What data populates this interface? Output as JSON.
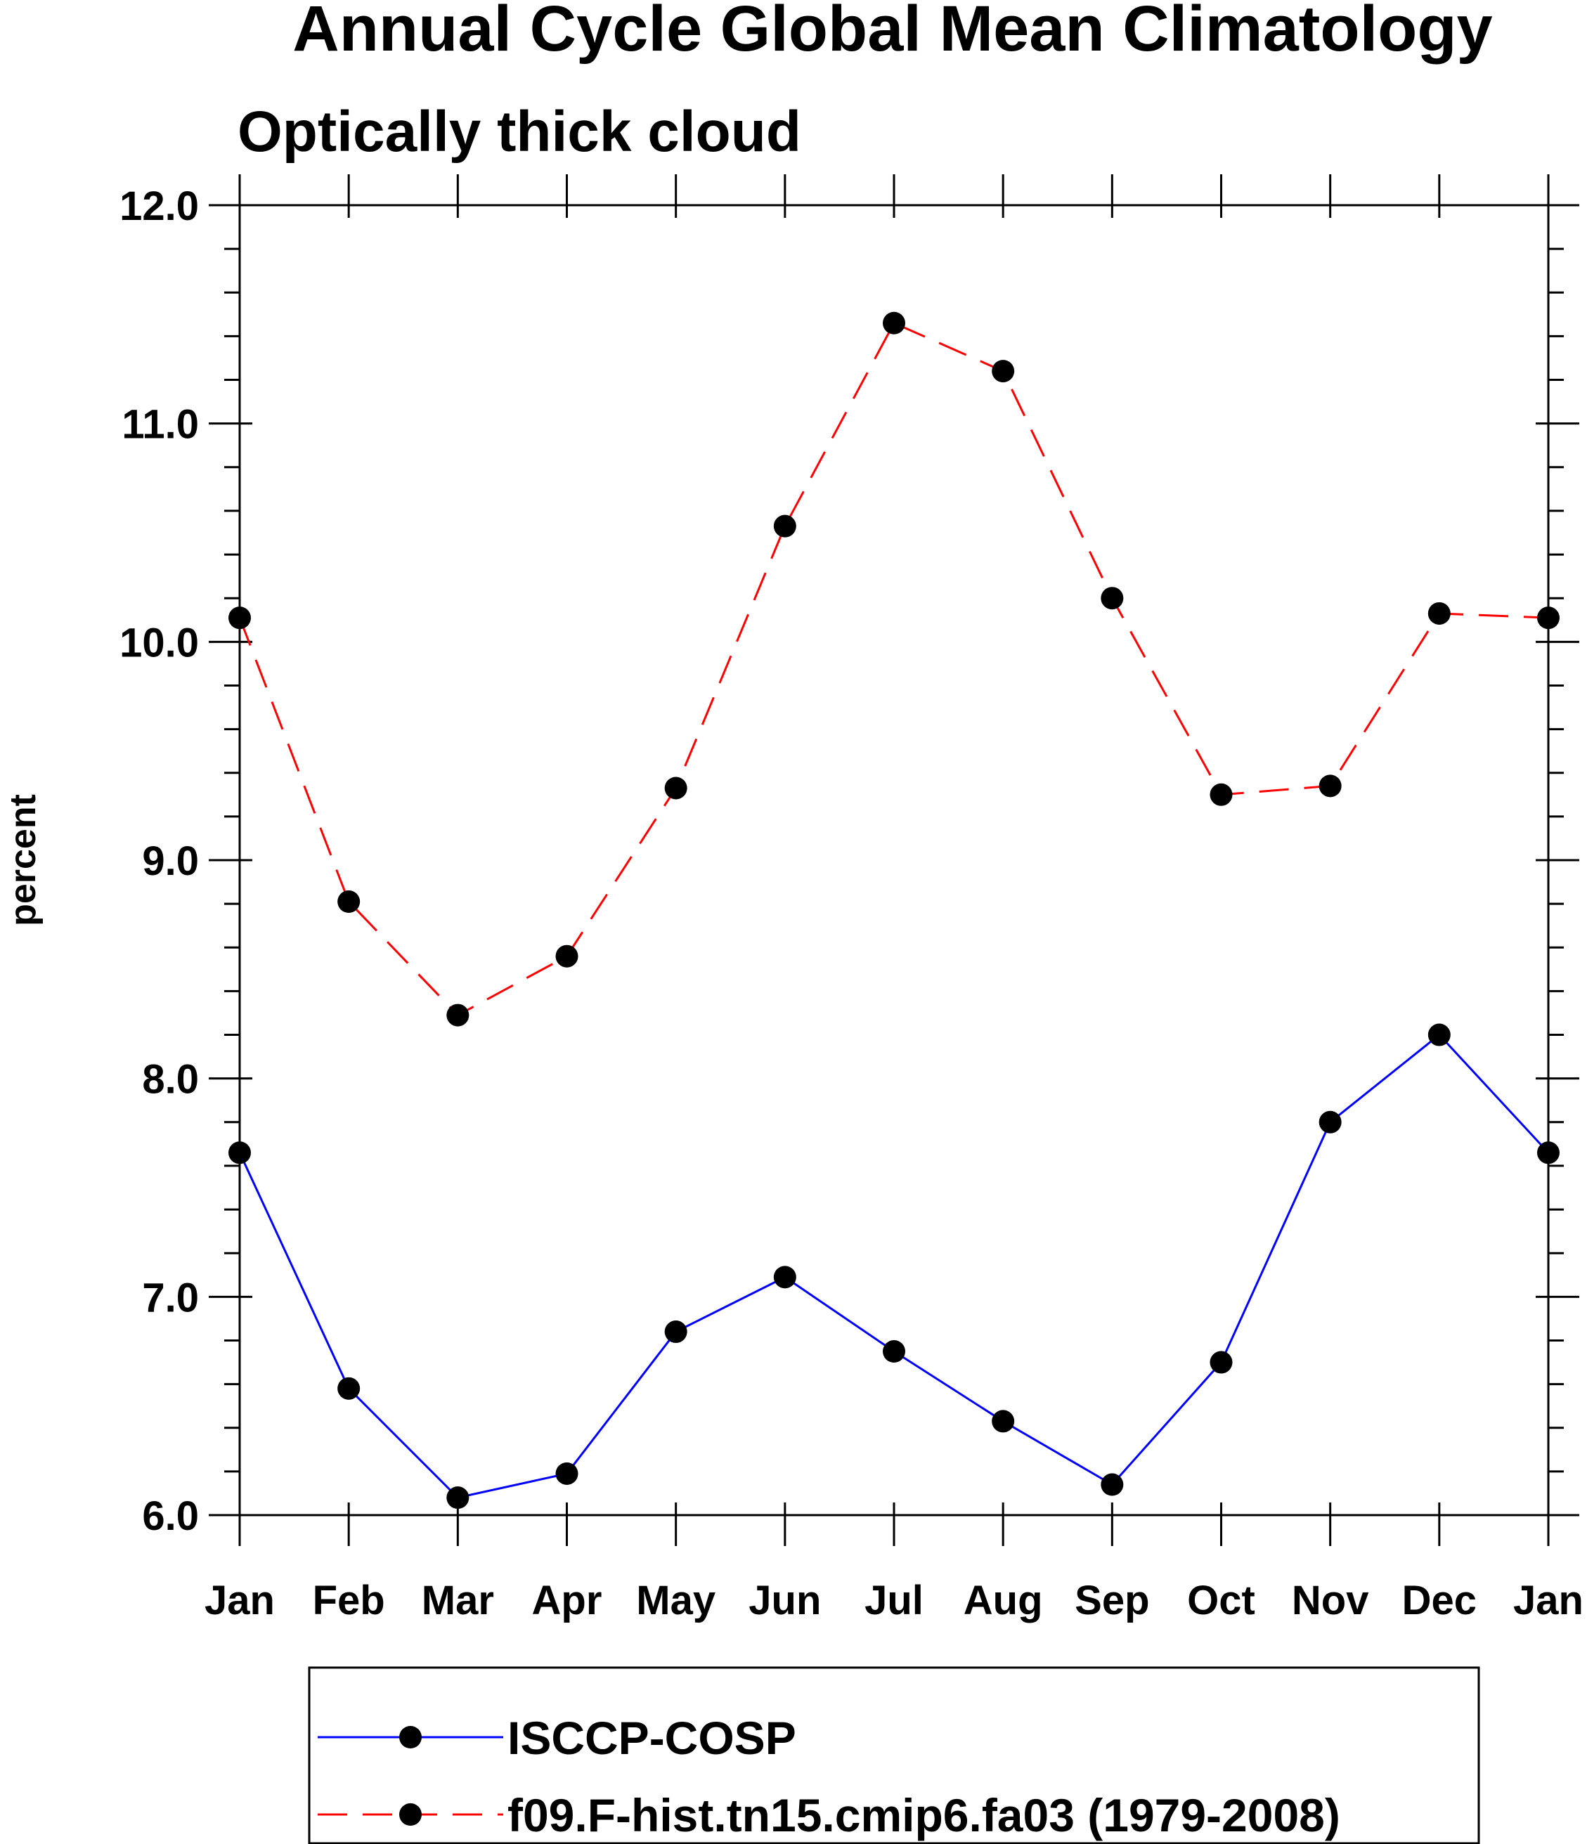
{
  "chart_data": {
    "type": "line",
    "title": "Annual Cycle Global Mean Climatology",
    "subtitle": "Optically thick cloud",
    "xlabel": "",
    "ylabel": "percent",
    "categories": [
      "Jan",
      "Feb",
      "Mar",
      "Apr",
      "May",
      "Jun",
      "Jul",
      "Aug",
      "Sep",
      "Oct",
      "Nov",
      "Dec",
      "Jan"
    ],
    "ylim": [
      6.0,
      12.0
    ],
    "yticks": [
      "6.0",
      "7.0",
      "8.0",
      "9.0",
      "10.0",
      "11.0",
      "12.0"
    ],
    "grid": false,
    "legend_position": "bottom",
    "series": [
      {
        "name": "ISCCP-COSP",
        "color": "#0000ff",
        "line_style": "solid",
        "marker": "filled-circle",
        "values": [
          7.66,
          6.58,
          6.08,
          6.19,
          6.84,
          7.09,
          6.75,
          6.43,
          6.14,
          6.7,
          7.8,
          8.2,
          7.66
        ]
      },
      {
        "name": "f09.F-hist.tn15.cmip6.fa03 (1979-2008)",
        "color": "#ff0000",
        "line_style": "dashed",
        "marker": "filled-circle",
        "values": [
          10.11,
          8.81,
          8.29,
          8.56,
          9.33,
          10.53,
          11.46,
          11.24,
          10.2,
          9.3,
          9.34,
          10.13,
          10.11
        ]
      }
    ]
  }
}
